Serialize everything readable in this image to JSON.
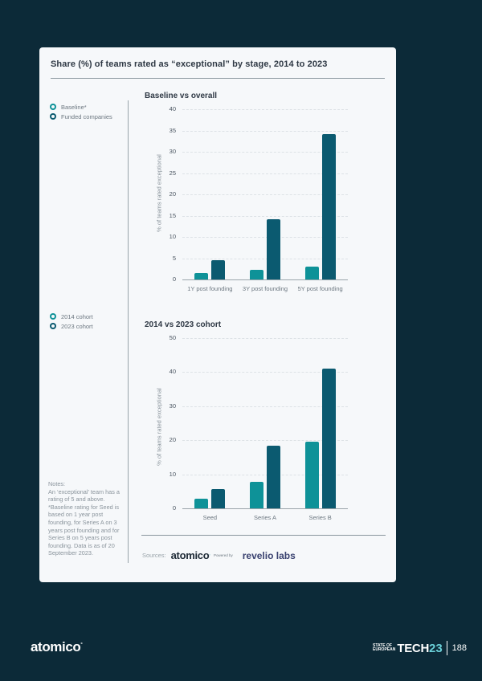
{
  "card": {
    "title": "Share (%) of teams rated as “exceptional” by stage, 2014 to 2023"
  },
  "colors": {
    "background": "#0c2a38",
    "card": "#f6f8fa",
    "series_light": "#0e9298",
    "series_dark": "#0b5a70"
  },
  "legend1": {
    "items": [
      {
        "label": "Baseline*",
        "color": "#0e9298"
      },
      {
        "label": "Funded companies",
        "color": "#0b5a70"
      }
    ]
  },
  "legend2": {
    "items": [
      {
        "label": "2014 cohort",
        "color": "#0e9298"
      },
      {
        "label": "2023 cohort",
        "color": "#0b5a70"
      }
    ]
  },
  "chart_data": [
    {
      "type": "bar",
      "title": "Baseline vs overall",
      "xlabel": "",
      "ylabel": "% of teams rated exceptional",
      "ylim": [
        0,
        40
      ],
      "yticks": [
        0,
        5,
        10,
        15,
        20,
        25,
        30,
        35,
        40
      ],
      "grid": true,
      "legend_position": "left",
      "categories": [
        "1Y post founding",
        "3Y post founding",
        "5Y post founding"
      ],
      "series": [
        {
          "name": "Baseline*",
          "values": [
            1.5,
            2.3,
            3.1
          ]
        },
        {
          "name": "Funded companies",
          "values": [
            4.5,
            14.1,
            34.1
          ]
        }
      ]
    },
    {
      "type": "bar",
      "title": "2014 vs 2023 cohort",
      "xlabel": "",
      "ylabel": "% of teams rated exceptional",
      "ylim": [
        0,
        50
      ],
      "yticks": [
        0,
        10,
        20,
        30,
        40,
        50
      ],
      "grid": true,
      "legend_position": "left",
      "categories": [
        "Seed",
        "Series A",
        "Series B"
      ],
      "series": [
        {
          "name": "2014 cohort",
          "values": [
            2.9,
            7.8,
            19.5
          ]
        },
        {
          "name": "2023 cohort",
          "values": [
            5.6,
            18.5,
            41.0
          ]
        }
      ]
    }
  ],
  "notes": {
    "heading": "Notes:",
    "text": "An ‘exceptional’ team has a rating of 5 and above. *Baseline rating for Seed is based on 1 year post founding, for Series A on 3 years post founding and for Series B on 5 years post founding. Data is as of 20 September 2023."
  },
  "sources": {
    "label": "Sources:",
    "atomico": "atomico",
    "powered_by": "Powered by",
    "revelio": "revelio labs"
  },
  "footer": {
    "logo": "atomico",
    "brand_state": "STATE OF",
    "brand_european": "EUROPEAN",
    "brand_tech": "TECH",
    "brand_year": "23",
    "page_number": "188"
  }
}
